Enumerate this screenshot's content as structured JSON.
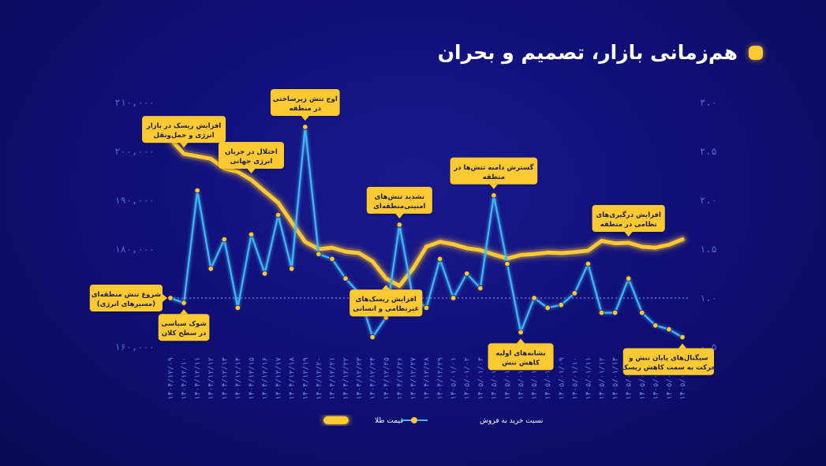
{
  "title": "هم‌زمانی بازار، تصمیم و بحران",
  "chart_data": {
    "type": "line",
    "x": [
      "۱۴۰۴/۱۲/۰۹",
      "۱۴۰۴/۱۲/۱۰",
      "۱۴۰۴/۱۲/۱۱",
      "۱۴۰۴/۱۲/۱۲",
      "۱۴۰۴/۱۲/۱۳",
      "۱۴۰۴/۱۲/۱۴",
      "۱۴۰۴/۱۲/۱۵",
      "۱۴۰۴/۱۲/۱۶",
      "۱۴۰۴/۱۲/۱۷",
      "۱۴۰۴/۱۲/۱۸",
      "۱۴۰۴/۱۲/۱۹",
      "۱۴۰۴/۱۲/۲۰",
      "۱۴۰۴/۱۲/۲۱",
      "۱۴۰۴/۱۲/۲۲",
      "۱۴۰۴/۱۲/۲۳",
      "۱۴۰۴/۱۲/۲۴",
      "۱۴۰۴/۱۲/۲۵",
      "۱۴۰۴/۱۲/۲۶",
      "۱۴۰۴/۱۲/۲۷",
      "۱۴۰۴/۱۲/۲۸",
      "۱۴۰۴/۱۲/۲۹",
      "۱۴۰۵/۰۱/۰۱",
      "۱۴۰۵/۰۱/۰۲",
      "۱۴۰۵/۰۱/۰۳",
      "۱۴۰۵/۰۱/۰۴",
      "۱۴۰۵/۰۱/۰۵",
      "۱۴۰۵/۰۱/۰۶",
      "۱۴۰۵/۰۱/۰۷",
      "۱۴۰۵/۰۱/۰۸",
      "۱۴۰۵/۰۱/۰۹",
      "۱۴۰۵/۰۱/۱۰",
      "۱۴۰۵/۰۱/۱۱",
      "۱۴۰۵/۰۱/۱۲",
      "۱۴۰۵/۰۱/۱۳",
      "۱۴۰۵/۰۱/۱۴",
      "۱۴۰۵/۰۱/۱۵",
      "۱۴۰۵/۰۱/۱۶",
      "۱۴۰۵/۰۱/۱۷",
      "۱۴۰۵/۰۱/۱۸"
    ],
    "series": [
      {
        "name": "قیمت طلا",
        "axis": "left",
        "color": "#ffc933",
        "values": [
          202500,
          199500,
          199000,
          198500,
          196500,
          195800,
          194200,
          191800,
          189500,
          185500,
          181500,
          180000,
          180300,
          179500,
          179200,
          177500,
          174000,
          172500,
          176000,
          180500,
          181500,
          181000,
          180200,
          179800,
          178900,
          178100,
          178800,
          179000,
          179300,
          179200,
          179400,
          179700,
          181700,
          181200,
          181300,
          180500,
          180300,
          180900,
          182000
        ]
      },
      {
        "name": "نسبت خرید به فروش",
        "axis": "right",
        "color": "#3fb8f5",
        "marker_color": "#ffc933",
        "values": [
          1.0,
          0.95,
          2.1,
          1.3,
          1.6,
          0.9,
          1.65,
          1.25,
          1.85,
          1.3,
          2.75,
          1.45,
          1.4,
          1.2,
          1.05,
          0.6,
          0.8,
          1.75,
          1.0,
          0.9,
          1.4,
          1.0,
          1.25,
          1.1,
          2.05,
          1.35,
          0.65,
          1.0,
          0.9,
          0.93,
          1.05,
          1.35,
          0.85,
          0.85,
          1.2,
          0.85,
          0.72,
          0.68,
          0.6
        ]
      }
    ],
    "ylim_left": [
      160000,
      210000
    ],
    "ylim_right": [
      0.5,
      3.0
    ],
    "yticks_left": [
      "۲۱۰,۰۰۰",
      "۲۰۰,۰۰۰",
      "۱۹۰,۰۰۰",
      "۱۸۰,۰۰۰",
      "۱۷۰,۰۰۰",
      "۱۶۰,۰۰۰"
    ],
    "yticks_right": [
      "۳.۰",
      "۲.۵",
      "۲.۰",
      "۱.۵",
      "۱.۰",
      "۰.۵"
    ],
    "reference_line": 1.0,
    "legend": [
      "قیمت طلا",
      "نسبت خرید به فروش"
    ],
    "legend_placement": "bottom-center",
    "grid": false,
    "annotations": [
      {
        "index": 0,
        "anchor": "blue",
        "side": "left",
        "lines": [
          "شروع تنش منطقه‌ای",
          "(مسیرهای انرژی)"
        ]
      },
      {
        "index": 1,
        "anchor": "gold",
        "side": "above",
        "lines": [
          "افزایش ریسک در بازار",
          "انرژی و حمل‌ونقل"
        ]
      },
      {
        "index": 1,
        "anchor": "blue",
        "side": "below",
        "lines": [
          "شوک سیاسی",
          "در سطح کلان"
        ]
      },
      {
        "index": 6,
        "anchor": "gold",
        "side": "above",
        "lines": [
          "اختلال در جریان",
          "انرژی جهانی"
        ]
      },
      {
        "index": 10,
        "anchor": "blue",
        "side": "above",
        "lines": [
          "اوج تنش زیرساختی",
          "در منطقه"
        ]
      },
      {
        "index": 16,
        "anchor": "gold",
        "side": "below",
        "lines": [
          "افزایش ریسک‌های",
          "غیرنظامی و انسانی"
        ]
      },
      {
        "index": 17,
        "anchor": "blue",
        "side": "above",
        "lines": [
          "تشدید تنش‌های",
          "امنیتی‌منطقه‌ای"
        ]
      },
      {
        "index": 24,
        "anchor": "blue",
        "side": "above",
        "lines": [
          "گسترش دامنه تنش‌ها در",
          "منطقه"
        ]
      },
      {
        "index": 26,
        "anchor": "blue",
        "side": "below",
        "lines": [
          "نشانه‌های اولیه",
          "کاهش تنش"
        ]
      },
      {
        "index": 34,
        "anchor": "gold",
        "side": "above",
        "lines": [
          "افزایش درگیری‌های",
          "نظامی در منطقه"
        ]
      },
      {
        "index": 38,
        "anchor": "blue",
        "side": "below",
        "lines": [
          "سیگنال‌های پایان تنش و",
          "حرکت به سمت کاهش ریسک"
        ]
      }
    ]
  }
}
